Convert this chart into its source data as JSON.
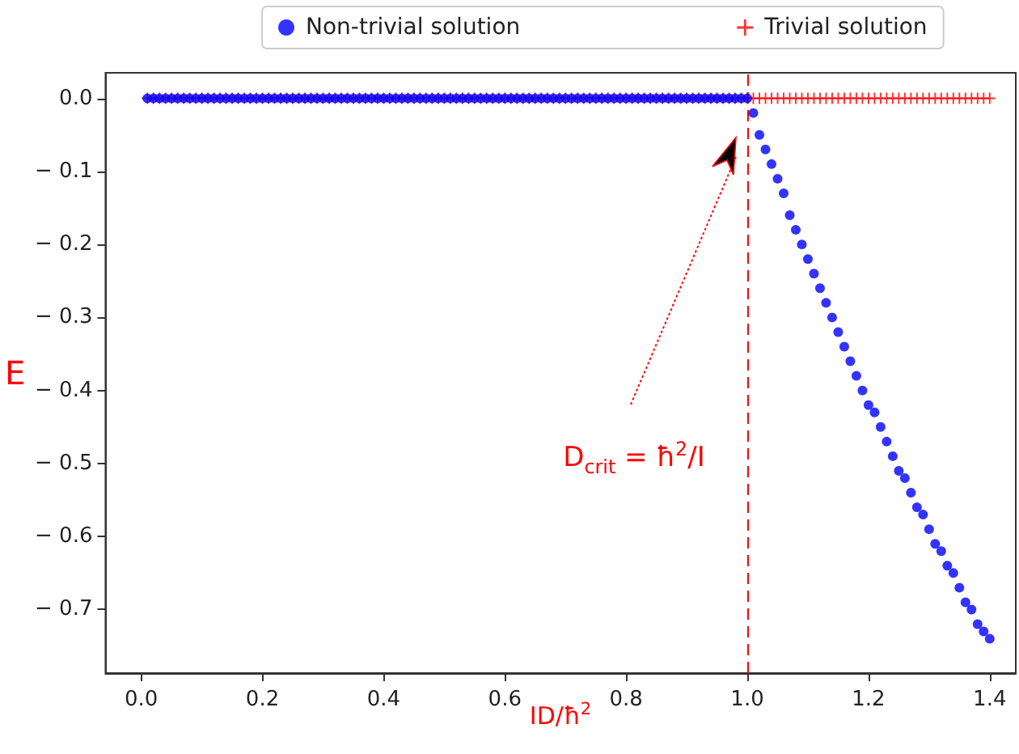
{
  "chart_data": {
    "type": "scatter",
    "xlabel": "ID/ħ$^{2}$",
    "ylabel": "E",
    "x": [
      0.01,
      0.02,
      0.03,
      0.04,
      0.05,
      0.06,
      0.07,
      0.08,
      0.09,
      0.1,
      0.11,
      0.12,
      0.13,
      0.14,
      0.15,
      0.16,
      0.17,
      0.18,
      0.19,
      0.2,
      0.21,
      0.22,
      0.23,
      0.24,
      0.25,
      0.26,
      0.27,
      0.28,
      0.29,
      0.3,
      0.31,
      0.32,
      0.33,
      0.34,
      0.35,
      0.36,
      0.37,
      0.38,
      0.39,
      0.4,
      0.41,
      0.42,
      0.43,
      0.44,
      0.45,
      0.46,
      0.47,
      0.48,
      0.49,
      0.5,
      0.51,
      0.52,
      0.53,
      0.54,
      0.55,
      0.56,
      0.57,
      0.58,
      0.59,
      0.6,
      0.61,
      0.62,
      0.63,
      0.64,
      0.65,
      0.66,
      0.67,
      0.68,
      0.69,
      0.7,
      0.71,
      0.72,
      0.73,
      0.74,
      0.75,
      0.76,
      0.77,
      0.78,
      0.79,
      0.8,
      0.81,
      0.82,
      0.83,
      0.84,
      0.85,
      0.86,
      0.87,
      0.88,
      0.89,
      0.9,
      0.91,
      0.92,
      0.93,
      0.94,
      0.95,
      0.96,
      0.97,
      0.98,
      0.99,
      1.0,
      1.01,
      1.02,
      1.03,
      1.04,
      1.05,
      1.06,
      1.07,
      1.08,
      1.09,
      1.1,
      1.11,
      1.12,
      1.13,
      1.14,
      1.15,
      1.16,
      1.17,
      1.18,
      1.19,
      1.2,
      1.21,
      1.22,
      1.23,
      1.24,
      1.25,
      1.26,
      1.27,
      1.28,
      1.29,
      1.3,
      1.31,
      1.32,
      1.33,
      1.34,
      1.35,
      1.36,
      1.37,
      1.38,
      1.39,
      1.4
    ],
    "series": [
      {
        "name": "Non-trivial solution",
        "color": "#0000ff",
        "marker": "circle",
        "values": [
          0,
          0,
          0,
          0,
          0,
          0,
          0,
          0,
          0,
          0,
          0,
          0,
          0,
          0,
          0,
          0,
          0,
          0,
          0,
          0,
          0,
          0,
          0,
          0,
          0,
          0,
          0,
          0,
          0,
          0,
          0,
          0,
          0,
          0,
          0,
          0,
          0,
          0,
          0,
          0,
          0,
          0,
          0,
          0,
          0,
          0,
          0,
          0,
          0,
          0,
          0,
          0,
          0,
          0,
          0,
          0,
          0,
          0,
          0,
          0,
          0,
          0,
          0,
          0,
          0,
          0,
          0,
          0,
          0,
          0,
          0,
          0,
          0,
          0,
          0,
          0,
          0,
          0,
          0,
          0,
          0,
          0,
          0,
          0,
          0,
          0,
          0,
          0,
          0,
          0,
          0,
          0,
          0,
          0,
          0,
          0,
          0,
          0,
          0,
          0,
          -0.02,
          -0.05,
          -0.07,
          -0.09,
          -0.11,
          -0.13,
          -0.16,
          -0.18,
          -0.2,
          -0.22,
          -0.24,
          -0.26,
          -0.28,
          -0.3,
          -0.32,
          -0.34,
          -0.36,
          -0.38,
          -0.4,
          -0.42,
          -0.43,
          -0.45,
          -0.47,
          -0.49,
          -0.51,
          -0.52,
          -0.54,
          -0.56,
          -0.57,
          -0.59,
          -0.61,
          -0.62,
          -0.64,
          -0.65,
          -0.67,
          -0.69,
          -0.7,
          -0.72,
          -0.73,
          -0.74
        ]
      },
      {
        "name": "Trivial solution",
        "color": "#ff0000",
        "marker": "cross",
        "values": [
          0,
          0,
          0,
          0,
          0,
          0,
          0,
          0,
          0,
          0,
          0,
          0,
          0,
          0,
          0,
          0,
          0,
          0,
          0,
          0,
          0,
          0,
          0,
          0,
          0,
          0,
          0,
          0,
          0,
          0,
          0,
          0,
          0,
          0,
          0,
          0,
          0,
          0,
          0,
          0,
          0,
          0,
          0,
          0,
          0,
          0,
          0,
          0,
          0,
          0,
          0,
          0,
          0,
          0,
          0,
          0,
          0,
          0,
          0,
          0,
          0,
          0,
          0,
          0,
          0,
          0,
          0,
          0,
          0,
          0,
          0,
          0,
          0,
          0,
          0,
          0,
          0,
          0,
          0,
          0,
          0,
          0,
          0,
          0,
          0,
          0,
          0,
          0,
          0,
          0,
          0,
          0,
          0,
          0,
          0,
          0,
          0,
          0,
          0,
          0,
          0,
          0,
          0,
          0,
          0,
          0,
          0,
          0,
          0,
          0,
          0,
          0,
          0,
          0,
          0,
          0,
          0,
          0,
          0,
          0,
          0,
          0,
          0,
          0,
          0,
          0,
          0,
          0,
          0,
          0,
          0,
          0,
          0,
          0,
          0,
          0,
          0,
          0,
          0,
          0
        ]
      }
    ],
    "xlim": [
      -0.059,
      1.443
    ],
    "xticks": [
      {
        "value": 0,
        "label": "0.0"
      },
      0.2,
      0.4,
      0.6,
      0.8,
      {
        "value": 1,
        "label": "1.0"
      },
      1.2,
      1.4
    ],
    "ylim": [
      -0.787,
      0.035
    ],
    "yticks": [
      {
        "value": 0,
        "label": "0.0"
      },
      {
        "value": -0.1,
        "label": "− 0.1"
      },
      {
        "value": -0.2,
        "label": "− 0.2"
      },
      {
        "value": -0.3,
        "label": "− 0.3"
      },
      {
        "value": -0.4,
        "label": "− 0.4"
      },
      {
        "value": -0.5,
        "label": "− 0.5"
      },
      {
        "value": -0.6,
        "label": "− 0.6"
      },
      {
        "value": -0.7,
        "label": "− 0.7"
      }
    ],
    "ref_lines": [
      {
        "axis": "x",
        "value": 1,
        "color": "#ff0000",
        "line_style": "dashed"
      }
    ],
    "annotations": [
      "D$_{crit}$ = ħ$^{2}$/I"
    ],
    "legend": "top",
    "grid": false
  }
}
